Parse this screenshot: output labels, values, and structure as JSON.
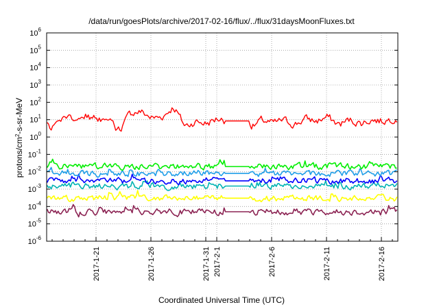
{
  "chart_data": {
    "type": "line",
    "title": "/data/run/goesPlots/archive/2017-02-16/flux/../flux/31daysMoonFluxes.txt",
    "xlabel": "Coordinated Universal Time (UTC)",
    "ylabel_parts": {
      "pre": "protons/cm",
      "sup": "2",
      "post": "-s-sr-MeV"
    },
    "yscale": "log",
    "ylim": [
      1e-06,
      1000000.0
    ],
    "grid": true,
    "x_start": "2017-01-16T12:00",
    "x_end": "2017-02-17T12:00",
    "x_ticks": [
      {
        "date": "2017-01-21",
        "label": "2017-1-21"
      },
      {
        "date": "2017-01-26",
        "label": "2017-1-26"
      },
      {
        "date": "2017-01-31",
        "label": "2017-1-31"
      },
      {
        "date": "2017-02-01",
        "label": "2017-2-1"
      },
      {
        "date": "2017-02-06",
        "label": "2017-2-6"
      },
      {
        "date": "2017-02-11",
        "label": "2017-2-11"
      },
      {
        "date": "2017-02-16",
        "label": "2017-2-16"
      }
    ],
    "y_ticks": [
      {
        "exp": "-6"
      },
      {
        "exp": "-5"
      },
      {
        "exp": "-4"
      },
      {
        "exp": "-3"
      },
      {
        "exp": "-2"
      },
      {
        "exp": "-1"
      },
      {
        "exp": "0"
      },
      {
        "exp": "1"
      },
      {
        "exp": "2"
      },
      {
        "exp": "3"
      },
      {
        "exp": "4"
      },
      {
        "exp": "5"
      },
      {
        "exp": "6"
      }
    ],
    "data_gap": [
      "2017-02-01T18:00",
      "2017-02-04T00:00"
    ],
    "series": [
      {
        "color": "#ff0000",
        "typical": 10,
        "range": [
          0.8,
          150
        ],
        "anchors": [
          [
            "2017-01-17",
            3
          ],
          [
            "2017-01-18",
            15
          ],
          [
            "2017-01-19",
            8
          ],
          [
            "2017-01-20",
            20
          ],
          [
            "2017-01-21",
            10
          ],
          [
            "2017-01-22",
            12
          ],
          [
            "2017-01-23",
            2
          ],
          [
            "2017-01-24",
            25
          ],
          [
            "2017-01-25",
            30
          ],
          [
            "2017-01-26",
            12
          ],
          [
            "2017-01-27",
            15
          ],
          [
            "2017-01-28",
            60
          ],
          [
            "2017-01-29",
            4
          ],
          [
            "2017-01-30",
            8
          ],
          [
            "2017-01-31",
            6
          ],
          [
            "2017-02-01",
            12
          ],
          [
            "2017-02-04",
            3
          ],
          [
            "2017-02-05",
            10
          ],
          [
            "2017-02-06",
            6
          ],
          [
            "2017-02-07",
            10
          ],
          [
            "2017-02-08",
            5
          ],
          [
            "2017-02-09",
            12
          ],
          [
            "2017-02-10",
            8
          ],
          [
            "2017-02-11",
            15
          ],
          [
            "2017-02-12",
            5
          ],
          [
            "2017-02-13",
            10
          ],
          [
            "2017-02-14",
            6
          ],
          [
            "2017-02-15",
            10
          ],
          [
            "2017-02-16",
            8
          ],
          [
            "2017-02-17",
            12
          ]
        ]
      },
      {
        "color": "#00ee00",
        "typical": 0.02,
        "range": [
          0.006,
          0.08
        ]
      },
      {
        "color": "#1f9ee8",
        "typical": 0.008,
        "range": [
          0.003,
          0.03
        ]
      },
      {
        "color": "#0000ff",
        "typical": 0.003,
        "range": [
          0.001,
          0.008
        ]
      },
      {
        "color": "#00b3b3",
        "typical": 0.0015,
        "range": [
          0.0008,
          0.003
        ]
      },
      {
        "color": "#ffff00",
        "typical": 0.0003,
        "range": [
          0.00012,
          0.0009
        ]
      },
      {
        "color": "#8b2252",
        "typical": 5e-05,
        "range": [
          1e-05,
          0.0002
        ]
      }
    ]
  }
}
